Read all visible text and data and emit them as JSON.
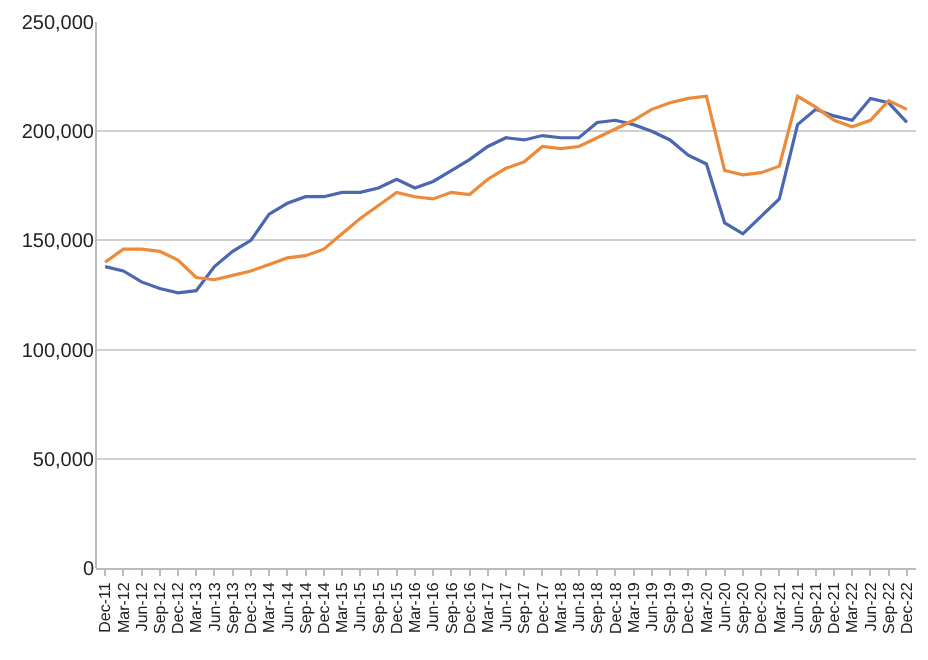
{
  "chart_data": {
    "type": "line",
    "categories": [
      "Dec-11",
      "Mar-12",
      "Jun-12",
      "Sep-12",
      "Dec-12",
      "Mar-13",
      "Jun-13",
      "Sep-13",
      "Dec-13",
      "Mar-14",
      "Jun-14",
      "Sep-14",
      "Dec-14",
      "Mar-15",
      "Jun-15",
      "Sep-15",
      "Dec-15",
      "Mar-16",
      "Jun-16",
      "Sep-16",
      "Dec-16",
      "Mar-17",
      "Jun-17",
      "Sep-17",
      "Dec-17",
      "Mar-18",
      "Jun-18",
      "Sep-18",
      "Dec-18",
      "Mar-19",
      "Jun-19",
      "Sep-19",
      "Dec-19",
      "Mar-20",
      "Jun-20",
      "Sep-20",
      "Dec-20",
      "Mar-21",
      "Jun-21",
      "Sep-21",
      "Dec-21",
      "Mar-22",
      "Jun-22",
      "Sep-22",
      "Dec-22"
    ],
    "series": [
      {
        "color": "#4a67b0",
        "values": [
          138000,
          136000,
          131000,
          128000,
          126000,
          127000,
          138000,
          145000,
          150000,
          162000,
          167000,
          170000,
          170000,
          172000,
          172000,
          174000,
          178000,
          174000,
          177000,
          182000,
          187000,
          193000,
          197000,
          196000,
          198000,
          197000,
          197000,
          204000,
          205000,
          203000,
          200000,
          196000,
          189000,
          185000,
          158000,
          153000,
          161000,
          169000,
          203000,
          210000,
          207000,
          205000,
          215000,
          213000,
          204000
        ]
      },
      {
        "color": "#ed8a3a",
        "values": [
          140000,
          146000,
          146000,
          145000,
          141000,
          133000,
          132000,
          134000,
          136000,
          139000,
          142000,
          143000,
          146000,
          153000,
          160000,
          166000,
          172000,
          170000,
          169000,
          172000,
          171000,
          178000,
          183000,
          186000,
          193000,
          192000,
          193000,
          197000,
          201000,
          205000,
          210000,
          213000,
          215000,
          216000,
          182000,
          180000,
          181000,
          184000,
          216000,
          211000,
          205000,
          202000,
          205000,
          214000,
          210000
        ]
      }
    ],
    "ylim": [
      0,
      250000
    ],
    "yticks": [
      {
        "value": 0,
        "label": "0"
      },
      {
        "value": 50000,
        "label": "50,000"
      },
      {
        "value": 100000,
        "label": "100,000"
      },
      {
        "value": 150000,
        "label": "150,000"
      },
      {
        "value": 200000,
        "label": "200,000"
      },
      {
        "value": 250000,
        "label": "250,000"
      }
    ],
    "grid": "y",
    "marker": "none",
    "line_style": "solid"
  }
}
